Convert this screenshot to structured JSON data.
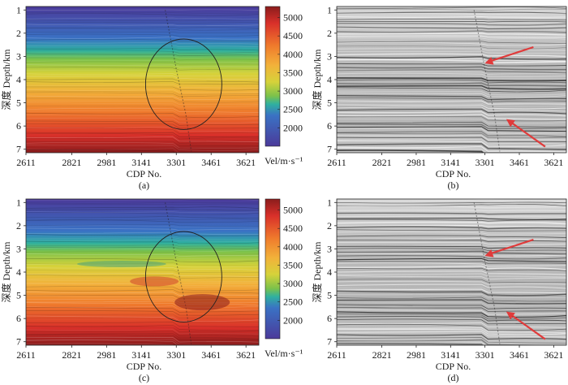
{
  "chart_data": [
    {
      "panel": "a",
      "type": "heatmap",
      "kind": "velocity",
      "letter": "(a)",
      "xlabel": "CDP No.",
      "ylabel": "深度 Depth/km",
      "x_ticks": [
        "2611",
        "2821",
        "2981",
        "3141",
        "3301",
        "3461",
        "3621"
      ],
      "y_ticks": [
        "1",
        "2",
        "3",
        "4",
        "5",
        "6",
        "7"
      ],
      "x_range": [
        2611,
        3680
      ],
      "y_range": [
        0.85,
        7.15
      ],
      "colorbar": {
        "ticks": [
          2000,
          2500,
          3000,
          3500,
          4000,
          4500,
          5000
        ],
        "labels": [
          "2000",
          "2500",
          "3000",
          "3500",
          "4000",
          "4500",
          "5000"
        ],
        "range": [
          1500,
          5300
        ],
        "unit": "Vel/m·s⁻¹"
      },
      "annotation": {
        "shape": "ellipse",
        "center_cdp": 3335,
        "center_depth_km": 4.2,
        "rx_cdp": 175,
        "ry_km": 1.95
      }
    },
    {
      "panel": "b",
      "type": "heatmap",
      "kind": "seismic",
      "letter": "(b)",
      "xlabel": "CDP No.",
      "ylabel": "深度 Depth/km",
      "x_ticks": [
        "2611",
        "2821",
        "2981",
        "3141",
        "3301",
        "3461",
        "3621"
      ],
      "y_ticks": [
        "1",
        "2",
        "3",
        "4",
        "5",
        "6",
        "7"
      ],
      "x_range": [
        2611,
        3680
      ],
      "y_range": [
        0.85,
        7.15
      ],
      "annotation": {
        "shape": "arrows",
        "targets": [
          {
            "cdp": 3300,
            "depth_km": 3.3
          },
          {
            "cdp": 3400,
            "depth_km": 5.7
          }
        ]
      }
    },
    {
      "panel": "c",
      "type": "heatmap",
      "kind": "velocity",
      "letter": "(c)",
      "xlabel": "CDP No.",
      "ylabel": "深度 Depth/km",
      "x_ticks": [
        "2611",
        "2821",
        "2981",
        "3141",
        "3301",
        "3461",
        "3621"
      ],
      "y_ticks": [
        "1",
        "2",
        "3",
        "4",
        "5",
        "6",
        "7"
      ],
      "x_range": [
        2611,
        3680
      ],
      "y_range": [
        0.85,
        7.15
      ],
      "colorbar": {
        "ticks": [
          2000,
          2500,
          3000,
          3500,
          4000,
          4500,
          5000
        ],
        "labels": [
          "2000",
          "2500",
          "3000",
          "3500",
          "4000",
          "4500",
          "5000"
        ],
        "range": [
          1500,
          5300
        ],
        "unit": "Vel/m·s⁻¹"
      },
      "annotation": {
        "shape": "ellipse",
        "center_cdp": 3335,
        "center_depth_km": 4.2,
        "rx_cdp": 175,
        "ry_km": 1.95
      }
    },
    {
      "panel": "d",
      "type": "heatmap",
      "kind": "seismic",
      "letter": "(d)",
      "xlabel": "CDP No.",
      "ylabel": "深度 Depth/km",
      "x_ticks": [
        "2611",
        "2821",
        "2981",
        "3141",
        "3301",
        "3461",
        "3621"
      ],
      "y_ticks": [
        "1",
        "2",
        "3",
        "4",
        "5",
        "6",
        "7"
      ],
      "x_range": [
        2611,
        3680
      ],
      "y_range": [
        0.85,
        7.15
      ],
      "annotation": {
        "shape": "arrows",
        "targets": [
          {
            "cdp": 3300,
            "depth_km": 3.3
          },
          {
            "cdp": 3400,
            "depth_km": 5.7
          }
        ]
      }
    }
  ],
  "colors": {
    "arrow": "#e03b3b",
    "ellipse": "#222222",
    "velocity_scale": [
      "#4b3a9a",
      "#3a72c4",
      "#2fb0a0",
      "#7cc24a",
      "#d6d23a",
      "#f2b13a",
      "#ef7a2c",
      "#d9302a",
      "#8a1c1c"
    ]
  }
}
